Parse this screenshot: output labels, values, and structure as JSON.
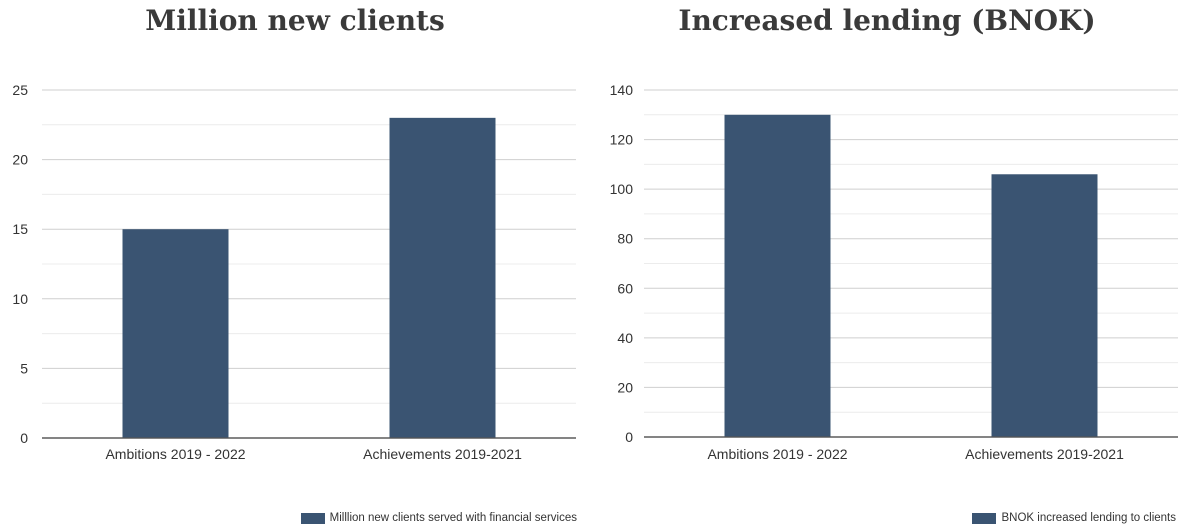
{
  "chart_data": [
    {
      "type": "bar",
      "title": "Million new clients",
      "categories": [
        "Ambitions 2019 - 2022",
        "Achievements 2019-2021"
      ],
      "series": [
        {
          "name": "Milllion new clients served with financial services",
          "values": [
            15,
            23
          ],
          "color": "#3a5472"
        }
      ],
      "ylim": [
        0,
        25
      ],
      "yticks": [
        0,
        5,
        10,
        15,
        20,
        25
      ],
      "grid": true,
      "legend_position": "bottom-right"
    },
    {
      "type": "bar",
      "title": "Increased lending (BNOK)",
      "categories": [
        "Ambitions 2019 - 2022",
        "Achievements 2019-2021"
      ],
      "series": [
        {
          "name": "BNOK increased lending to clients",
          "values": [
            130,
            106
          ],
          "color": "#3a5472"
        }
      ],
      "ylim": [
        0,
        140
      ],
      "yticks": [
        0,
        20,
        40,
        60,
        80,
        100,
        120,
        140
      ],
      "grid": true,
      "legend_position": "bottom-right"
    }
  ]
}
